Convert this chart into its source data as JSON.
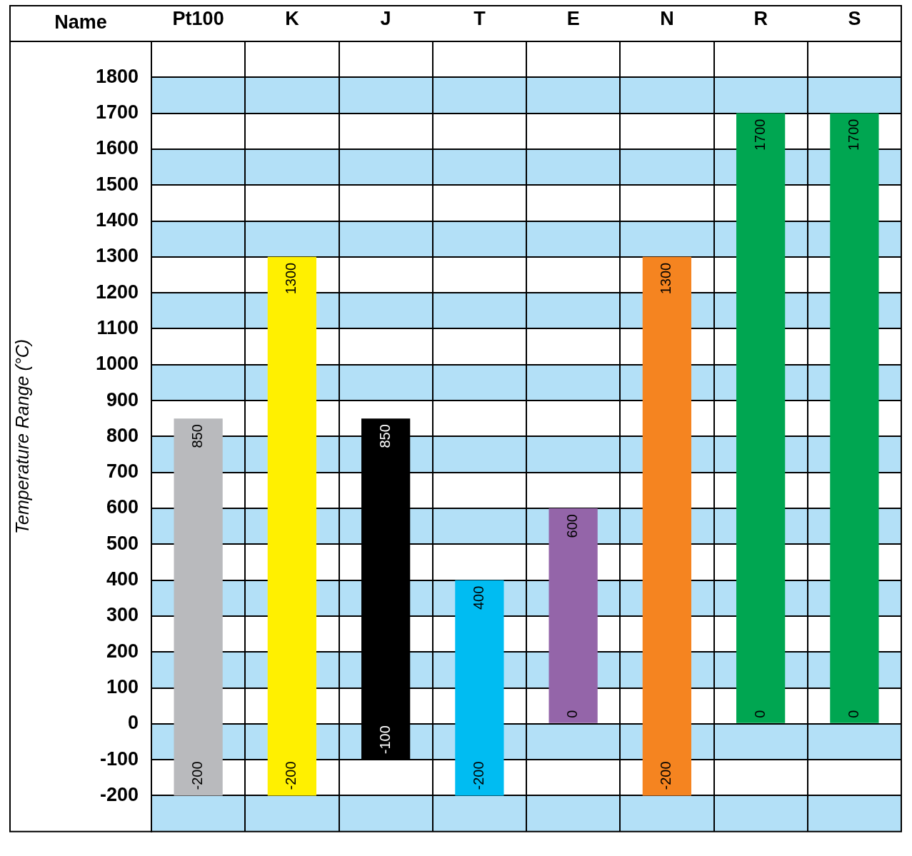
{
  "chart_data": {
    "type": "bar",
    "xlabel": "Name",
    "ylabel": "Temperature Range (°C)",
    "categories": [
      "Pt100",
      "K",
      "J",
      "T",
      "E",
      "N",
      "R",
      "S"
    ],
    "base": [
      -200,
      -200,
      -100,
      -200,
      0,
      -200,
      0,
      0
    ],
    "values": [
      1050,
      1500,
      950,
      600,
      600,
      1500,
      1700,
      1700
    ],
    "colors": [
      "#b9babd",
      "#fff000",
      "#000000",
      "#00bcf2",
      "#9465a9",
      "#f58420",
      "#00a651",
      "#00a651"
    ],
    "ylim": [
      -300,
      1900
    ],
    "yticks": [
      -200,
      -100,
      0,
      100,
      200,
      300,
      400,
      500,
      600,
      700,
      800,
      900,
      1000,
      1100,
      1200,
      1300,
      1400,
      1500,
      1600,
      1700,
      1800
    ],
    "grid": true,
    "bands": [
      {
        "axis": "y",
        "from": 1700,
        "to": 1800,
        "color": "#b3e0f7"
      },
      {
        "axis": "y",
        "from": 1500,
        "to": 1600,
        "color": "#b3e0f7"
      },
      {
        "axis": "y",
        "from": 1300,
        "to": 1400,
        "color": "#b3e0f7"
      },
      {
        "axis": "y",
        "from": 1100,
        "to": 1200,
        "color": "#b3e0f7"
      },
      {
        "axis": "y",
        "from": 900,
        "to": 1000,
        "color": "#b3e0f7"
      },
      {
        "axis": "y",
        "from": 700,
        "to": 800,
        "color": "#b3e0f7"
      },
      {
        "axis": "y",
        "from": 500,
        "to": 600,
        "color": "#b3e0f7"
      },
      {
        "axis": "y",
        "from": 300,
        "to": 400,
        "color": "#b3e0f7"
      },
      {
        "axis": "y",
        "from": 100,
        "to": 200,
        "color": "#b3e0f7"
      },
      {
        "axis": "y",
        "from": -100,
        "to": 0,
        "color": "#b3e0f7"
      },
      {
        "axis": "y",
        "from": -300,
        "to": -200,
        "color": "#b3e0f7"
      }
    ],
    "annotations": [
      {
        "text": "850",
        "x": "Pt100",
        "y": 850
      },
      {
        "text": "-200",
        "x": "Pt100",
        "y": -200
      },
      {
        "text": "1300",
        "x": "K",
        "y": 1300
      },
      {
        "text": "-200",
        "x": "K",
        "y": -200
      },
      {
        "text": "850",
        "x": "J",
        "y": 850
      },
      {
        "text": "-100",
        "x": "J",
        "y": -100
      },
      {
        "text": "400",
        "x": "T",
        "y": 400
      },
      {
        "text": "-200",
        "x": "T",
        "y": -200
      },
      {
        "text": "600",
        "x": "E",
        "y": 600
      },
      {
        "text": "0",
        "x": "E",
        "y": 0
      },
      {
        "text": "1300",
        "x": "N",
        "y": 1300
      },
      {
        "text": "-200",
        "x": "N",
        "y": -200
      },
      {
        "text": "1700",
        "x": "R",
        "y": 1700
      },
      {
        "text": "0",
        "x": "R",
        "y": 0
      },
      {
        "text": "1700",
        "x": "S",
        "y": 1700
      },
      {
        "text": "0",
        "x": "S",
        "y": 0
      }
    ]
  }
}
